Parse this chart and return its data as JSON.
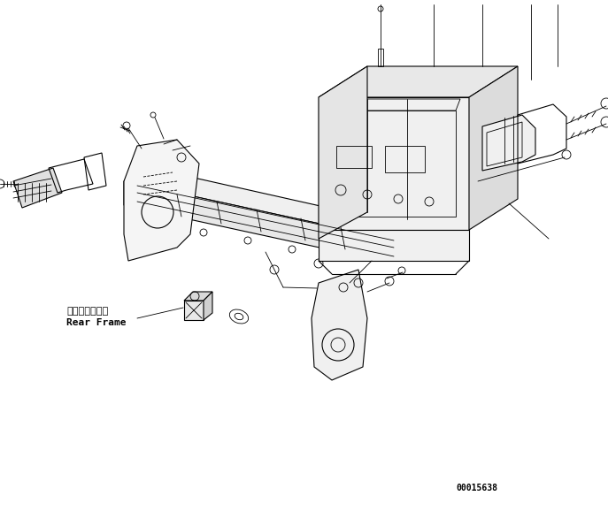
{
  "bg_color": "#ffffff",
  "line_color": "#000000",
  "fig_width": 6.87,
  "fig_height": 5.78,
  "dpi": 100,
  "label_japanese": "リヤーフレーム",
  "label_english": "Rear Frame",
  "part_number": "00015638"
}
